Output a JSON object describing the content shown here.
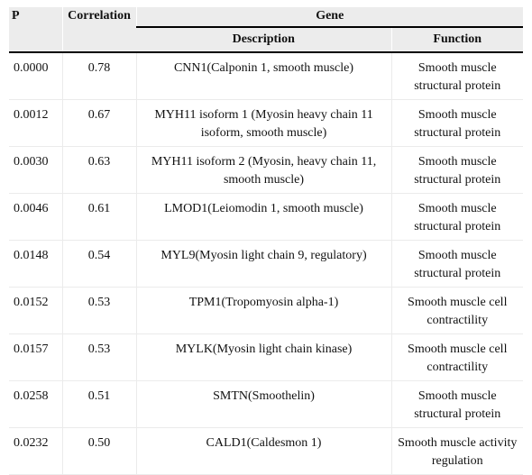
{
  "headers": {
    "p": "P",
    "correlation": "Correlation",
    "gene": "Gene",
    "description": "Description",
    "function": "Function"
  },
  "rows": [
    {
      "p": "0.0000",
      "correlation": "0.78",
      "description": "CNN1(Calponin 1, smooth muscle)",
      "function": "Smooth muscle structural protein"
    },
    {
      "p": "0.0012",
      "correlation": "0.67",
      "description": "MYH11 isoform 1 (Myosin heavy chain 11 isoform, smooth muscle)",
      "function": "Smooth muscle structural protein"
    },
    {
      "p": "0.0030",
      "correlation": "0.63",
      "description": "MYH11 isoform 2 (Myosin, heavy chain 11, smooth muscle)",
      "function": "Smooth muscle structural protein"
    },
    {
      "p": "0.0046",
      "correlation": "0.61",
      "description": "LMOD1(Leiomodin 1, smooth muscle)",
      "function": "Smooth muscle structural protein"
    },
    {
      "p": "0.0148",
      "correlation": "0.54",
      "description": "MYL9(Myosin light chain 9, regulatory)",
      "function": "Smooth muscle structural protein"
    },
    {
      "p": "0.0152",
      "correlation": "0.53",
      "description": "TPM1(Tropomyosin alpha-1)",
      "function": "Smooth muscle cell contractility"
    },
    {
      "p": "0.0157",
      "correlation": "0.53",
      "description": "MYLK(Myosin light chain kinase)",
      "function": "Smooth muscle cell contractility"
    },
    {
      "p": "0.0258",
      "correlation": "0.51",
      "description": "SMTN(Smoothelin)",
      "function": "Smooth muscle structural protein"
    },
    {
      "p": "0.0232",
      "correlation": "0.50",
      "description": "CALD1(Caldesmon 1)",
      "function": "Smooth muscle activity regulation"
    }
  ]
}
